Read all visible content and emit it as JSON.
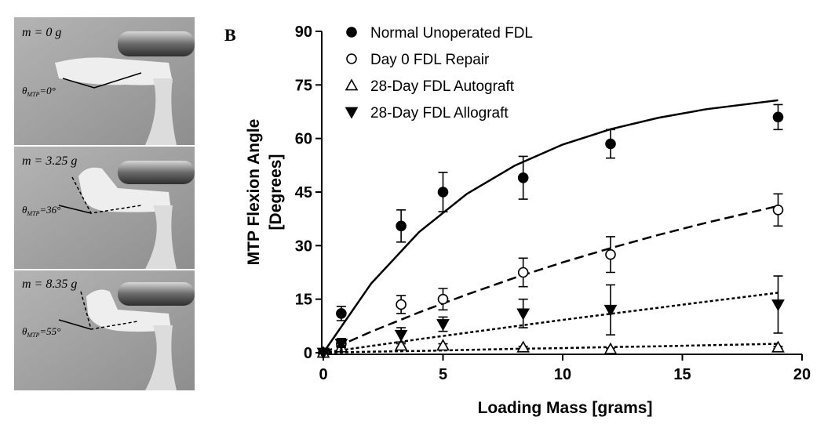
{
  "panels": [
    {
      "mass_label": "m = 0 g",
      "angle_symbol": "θ",
      "angle_subscript": "MTP",
      "angle_text": "=0°"
    },
    {
      "mass_label": "m = 3.25 g",
      "angle_symbol": "θ",
      "angle_subscript": "MTP",
      "angle_text": "=36°"
    },
    {
      "mass_label": "m = 8.35 g",
      "angle_symbol": "θ",
      "angle_subscript": "MTP",
      "angle_text": "=55°"
    }
  ],
  "chart_data": {
    "type": "scatter",
    "panel_label": "B",
    "xlabel": "Loading Mass [grams]",
    "ylabel": [
      "MTP Flexion Angle",
      "[Degrees]"
    ],
    "xlim": [
      0,
      20
    ],
    "xticks": [
      0,
      5,
      10,
      15,
      20
    ],
    "ylim": [
      0,
      90
    ],
    "yticks": [
      0,
      15,
      30,
      45,
      60,
      75,
      90
    ],
    "x": [
      0,
      0.75,
      3.25,
      5,
      8.35,
      12,
      19
    ],
    "series": [
      {
        "name": "Normal Unoperated FDL",
        "color": "#000000",
        "marker": "circle",
        "filled": true,
        "values": [
          0,
          11,
          35.5,
          45,
          49,
          58.5,
          66
        ],
        "errors": [
          0,
          2,
          4.5,
          5.5,
          6,
          4,
          3.5
        ],
        "fit": {
          "style": "solid",
          "x": [
            0,
            2,
            4,
            6,
            8,
            10,
            12,
            14,
            16,
            19
          ],
          "y": [
            0,
            19.4,
            33.8,
            44.5,
            52.4,
            58.3,
            62.6,
            65.8,
            68.2,
            70.7
          ]
        }
      },
      {
        "name": "Day 0 FDL Repair",
        "color": "#000000",
        "marker": "circle",
        "filled": false,
        "values": [
          0,
          2.5,
          13.5,
          15,
          22.5,
          27.5,
          40
        ],
        "errors": [
          0,
          1.5,
          2.5,
          3,
          4,
          5,
          4.5
        ],
        "fit": {
          "style": "dashed",
          "x": [
            0,
            2,
            4,
            6,
            8,
            10,
            12,
            14,
            16,
            19
          ],
          "y": [
            0,
            5.9,
            11.3,
            16.3,
            21,
            25.3,
            29.3,
            33,
            36.4,
            41.1
          ]
        }
      },
      {
        "name": "28-Day FDL Autograft",
        "color": "#000000",
        "marker": "triangle-up",
        "filled": false,
        "values": [
          0,
          1.5,
          2,
          2,
          1.5,
          1,
          1.5
        ],
        "errors": [
          0,
          0.5,
          0.5,
          0.5,
          0.3,
          0.3,
          0.3
        ],
        "fit": {
          "style": "dotted",
          "x": [
            0,
            2,
            4,
            6,
            8,
            10,
            12,
            14,
            16,
            19
          ],
          "y": [
            0,
            0.3,
            0.5,
            0.8,
            1.1,
            1.3,
            1.6,
            1.8,
            2.1,
            2.5
          ]
        }
      },
      {
        "name": "28-Day FDL Allograft",
        "color": "#000000",
        "marker": "triangle-down",
        "filled": true,
        "values": [
          0,
          2.5,
          5,
          8,
          11,
          12,
          13.5
        ],
        "errors": [
          0,
          1,
          2,
          2,
          4,
          7,
          8
        ],
        "fit": {
          "style": "dotted",
          "x": [
            0,
            2,
            4,
            6,
            8,
            10,
            12,
            14,
            16,
            19
          ],
          "y": [
            0,
            1.9,
            3.8,
            5.6,
            7.4,
            9.2,
            10.9,
            12.6,
            14.3,
            16.8
          ]
        }
      }
    ]
  }
}
